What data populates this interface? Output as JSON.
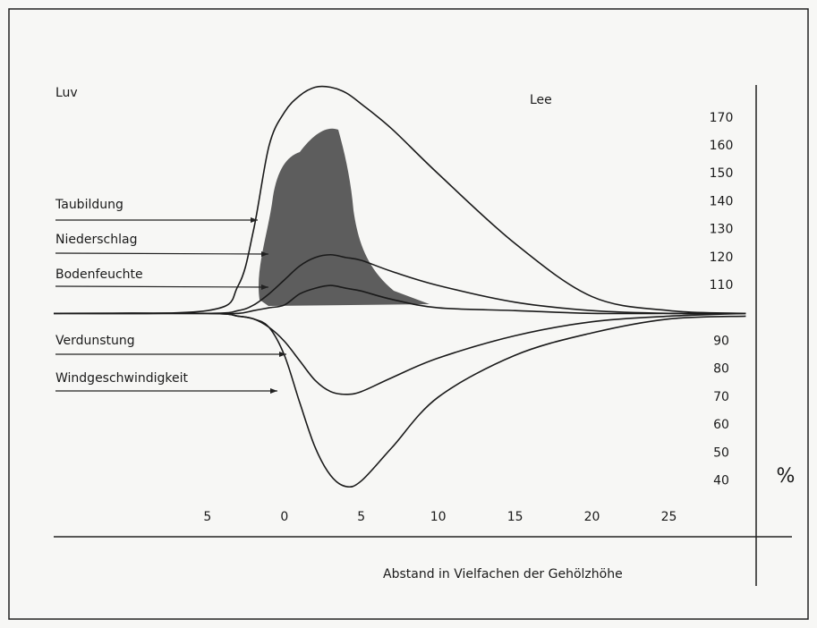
{
  "chart_data": {
    "type": "line",
    "annotations": [
      "Luv",
      "Lee"
    ],
    "x_label": "Abstand in Vielfachen der Gehölzhöhe",
    "y_label": "%",
    "x": [
      -15,
      -5,
      -3,
      -2,
      -1,
      0,
      1,
      2,
      3,
      4,
      5,
      7,
      10,
      15,
      20,
      25,
      30
    ],
    "series": [
      {
        "name": "Taubildung",
        "color": "#1a1a1a",
        "values": [
          100,
          101,
          110,
          130,
          160,
          172,
          178,
          181,
          181,
          179,
          175,
          166,
          150,
          125,
          106,
          101,
          100
        ]
      },
      {
        "name": "Niederschlag",
        "color": "#1a1a1a",
        "values": [
          100,
          100,
          101,
          103,
          107,
          112,
          117,
          120,
          121,
          120,
          119,
          115,
          110,
          104,
          101,
          100,
          100
        ]
      },
      {
        "name": "Bodenfeuchte",
        "color": "#1a1a1a",
        "values": [
          100,
          100,
          100,
          101,
          102,
          103,
          107,
          109,
          110,
          109,
          108,
          105,
          102,
          101,
          100,
          100,
          100
        ]
      },
      {
        "name": "Verdunstung",
        "color": "#1a1a1a",
        "values": [
          100,
          100,
          99,
          98,
          95,
          90,
          83,
          76,
          72,
          71,
          72,
          77,
          84,
          92,
          97,
          99,
          100
        ]
      },
      {
        "name": "Windgeschwindigkeit",
        "color": "#1a1a1a",
        "values": [
          100,
          100,
          99,
          98,
          95,
          85,
          68,
          52,
          42,
          38,
          40,
          52,
          70,
          85,
          93,
          98,
          99
        ]
      }
    ],
    "xlim": [
      -15,
      33
    ],
    "ylim": [
      20,
      185
    ],
    "xticks": [
      {
        "value": -5,
        "label": "5"
      },
      0,
      5,
      10,
      15,
      20,
      25
    ],
    "yticks": [
      40,
      50,
      60,
      70,
      80,
      90,
      110,
      120,
      130,
      140,
      150,
      160,
      170
    ]
  }
}
